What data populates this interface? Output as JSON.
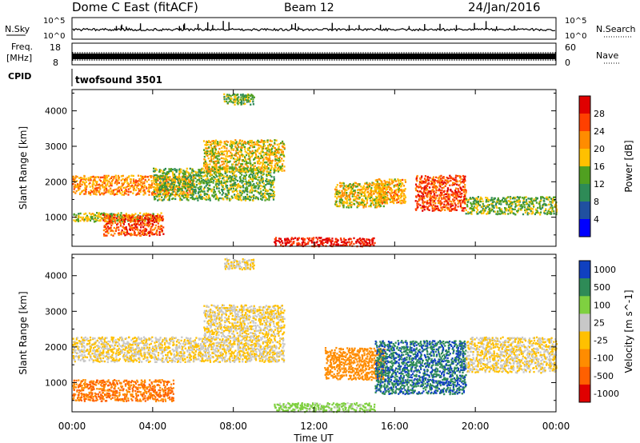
{
  "header": {
    "station": "Dome C East (fitACF)",
    "beam": "Beam 12",
    "date": "24/Jan/2016"
  },
  "top_panels": {
    "nsky_label": "N.Sky",
    "nsky_ticks": [
      "10^5",
      "10^0"
    ],
    "nsearch_label": "N.Search",
    "nsearch_ticks": [
      "10^5",
      "10^0"
    ],
    "freq_label": "Freq.",
    "freq_unit": "[MHz]",
    "freq_ticks": [
      "18",
      "8"
    ],
    "nave_label": "Nave",
    "nave_ticks": [
      "60",
      "0"
    ],
    "cpid_label": "CPID",
    "cpid_value": "twofsound 3501"
  },
  "chart_data": [
    {
      "type": "heatmap",
      "name": "power",
      "ylabel": "Slant Range [km]",
      "xlabel": "Time UT",
      "xlim": [
        0,
        24
      ],
      "ylim": [
        180,
        4600
      ],
      "y_ticks": [
        "4000",
        "3000",
        "2000",
        "1000"
      ],
      "x_ticks": [
        "00:00",
        "04:00",
        "08:00",
        "12:00",
        "16:00",
        "20:00",
        "00:00"
      ],
      "colorbar": {
        "label": "Power [dB]",
        "ticks": [
          "28",
          "24",
          "20",
          "16",
          "12",
          "8",
          "4"
        ],
        "colors": [
          "#e00000",
          "#ff4000",
          "#ff8c00",
          "#ffc000",
          "#50a020",
          "#2e8b57",
          "#2050a0",
          "#0000ff"
        ],
        "range": [
          0,
          32
        ]
      },
      "regions": [
        {
          "t0": 0.0,
          "t1": 6.0,
          "r0": 1650,
          "r1": 2200,
          "value": 22
        },
        {
          "t0": 0.0,
          "t1": 4.5,
          "r0": 900,
          "r1": 1150,
          "value": 16
        },
        {
          "t0": 1.5,
          "t1": 4.5,
          "r0": 500,
          "r1": 1100,
          "value": 26
        },
        {
          "t0": 4.0,
          "t1": 10.0,
          "r0": 1500,
          "r1": 2400,
          "value": 14
        },
        {
          "t0": 6.5,
          "t1": 10.5,
          "r0": 2300,
          "r1": 3200,
          "value": 18
        },
        {
          "t0": 10.0,
          "t1": 15.0,
          "r0": 200,
          "r1": 450,
          "value": 29
        },
        {
          "t0": 13.0,
          "t1": 15.5,
          "r0": 1300,
          "r1": 2000,
          "value": 18
        },
        {
          "t0": 15.0,
          "t1": 16.5,
          "r0": 1400,
          "r1": 2100,
          "value": 20
        },
        {
          "t0": 17.0,
          "t1": 19.5,
          "r0": 1200,
          "r1": 2200,
          "value": 26
        },
        {
          "t0": 19.5,
          "t1": 24.0,
          "r0": 1100,
          "r1": 1600,
          "value": 14
        },
        {
          "t0": 7.5,
          "t1": 9.0,
          "r0": 4200,
          "r1": 4500,
          "value": 14
        }
      ]
    },
    {
      "type": "heatmap",
      "name": "velocity",
      "ylabel": "Slant Range [km]",
      "xlabel": "Time UT",
      "xlim": [
        0,
        24
      ],
      "ylim": [
        180,
        4600
      ],
      "y_ticks": [
        "4000",
        "3000",
        "2000",
        "1000"
      ],
      "x_ticks": [
        "00:00",
        "04:00",
        "08:00",
        "12:00",
        "16:00",
        "20:00",
        "00:00"
      ],
      "colorbar": {
        "label": "Velocity [m s^-1]",
        "ticks": [
          "1000",
          "500",
          "100",
          "25",
          "-25",
          "-100",
          "-500",
          "-1000"
        ],
        "colors": [
          "#1040c0",
          "#2e8b57",
          "#7fd040",
          "#c8c8c8",
          "#ffc000",
          "#ff8c00",
          "#ff6000",
          "#e00000"
        ]
      },
      "regions": [
        {
          "t0": 0.0,
          "t1": 10.5,
          "r0": 1600,
          "r1": 2300,
          "value": 0
        },
        {
          "t0": 0.0,
          "t1": 5.0,
          "r0": 500,
          "r1": 1100,
          "value": -300
        },
        {
          "t0": 6.5,
          "t1": 10.5,
          "r0": 2300,
          "r1": 3200,
          "value": 0
        },
        {
          "t0": 10.0,
          "t1": 15.0,
          "r0": 200,
          "r1": 450,
          "value": 80
        },
        {
          "t0": 12.5,
          "t1": 15.5,
          "r0": 1100,
          "r1": 2000,
          "value": -100
        },
        {
          "t0": 15.0,
          "t1": 19.5,
          "r0": 700,
          "r1": 2200,
          "value": 700
        },
        {
          "t0": 19.5,
          "t1": 24.0,
          "r0": 1300,
          "r1": 2300,
          "value": 0
        },
        {
          "t0": 7.5,
          "t1": 9.0,
          "r0": 4200,
          "r1": 4500,
          "value": 0
        }
      ]
    }
  ]
}
